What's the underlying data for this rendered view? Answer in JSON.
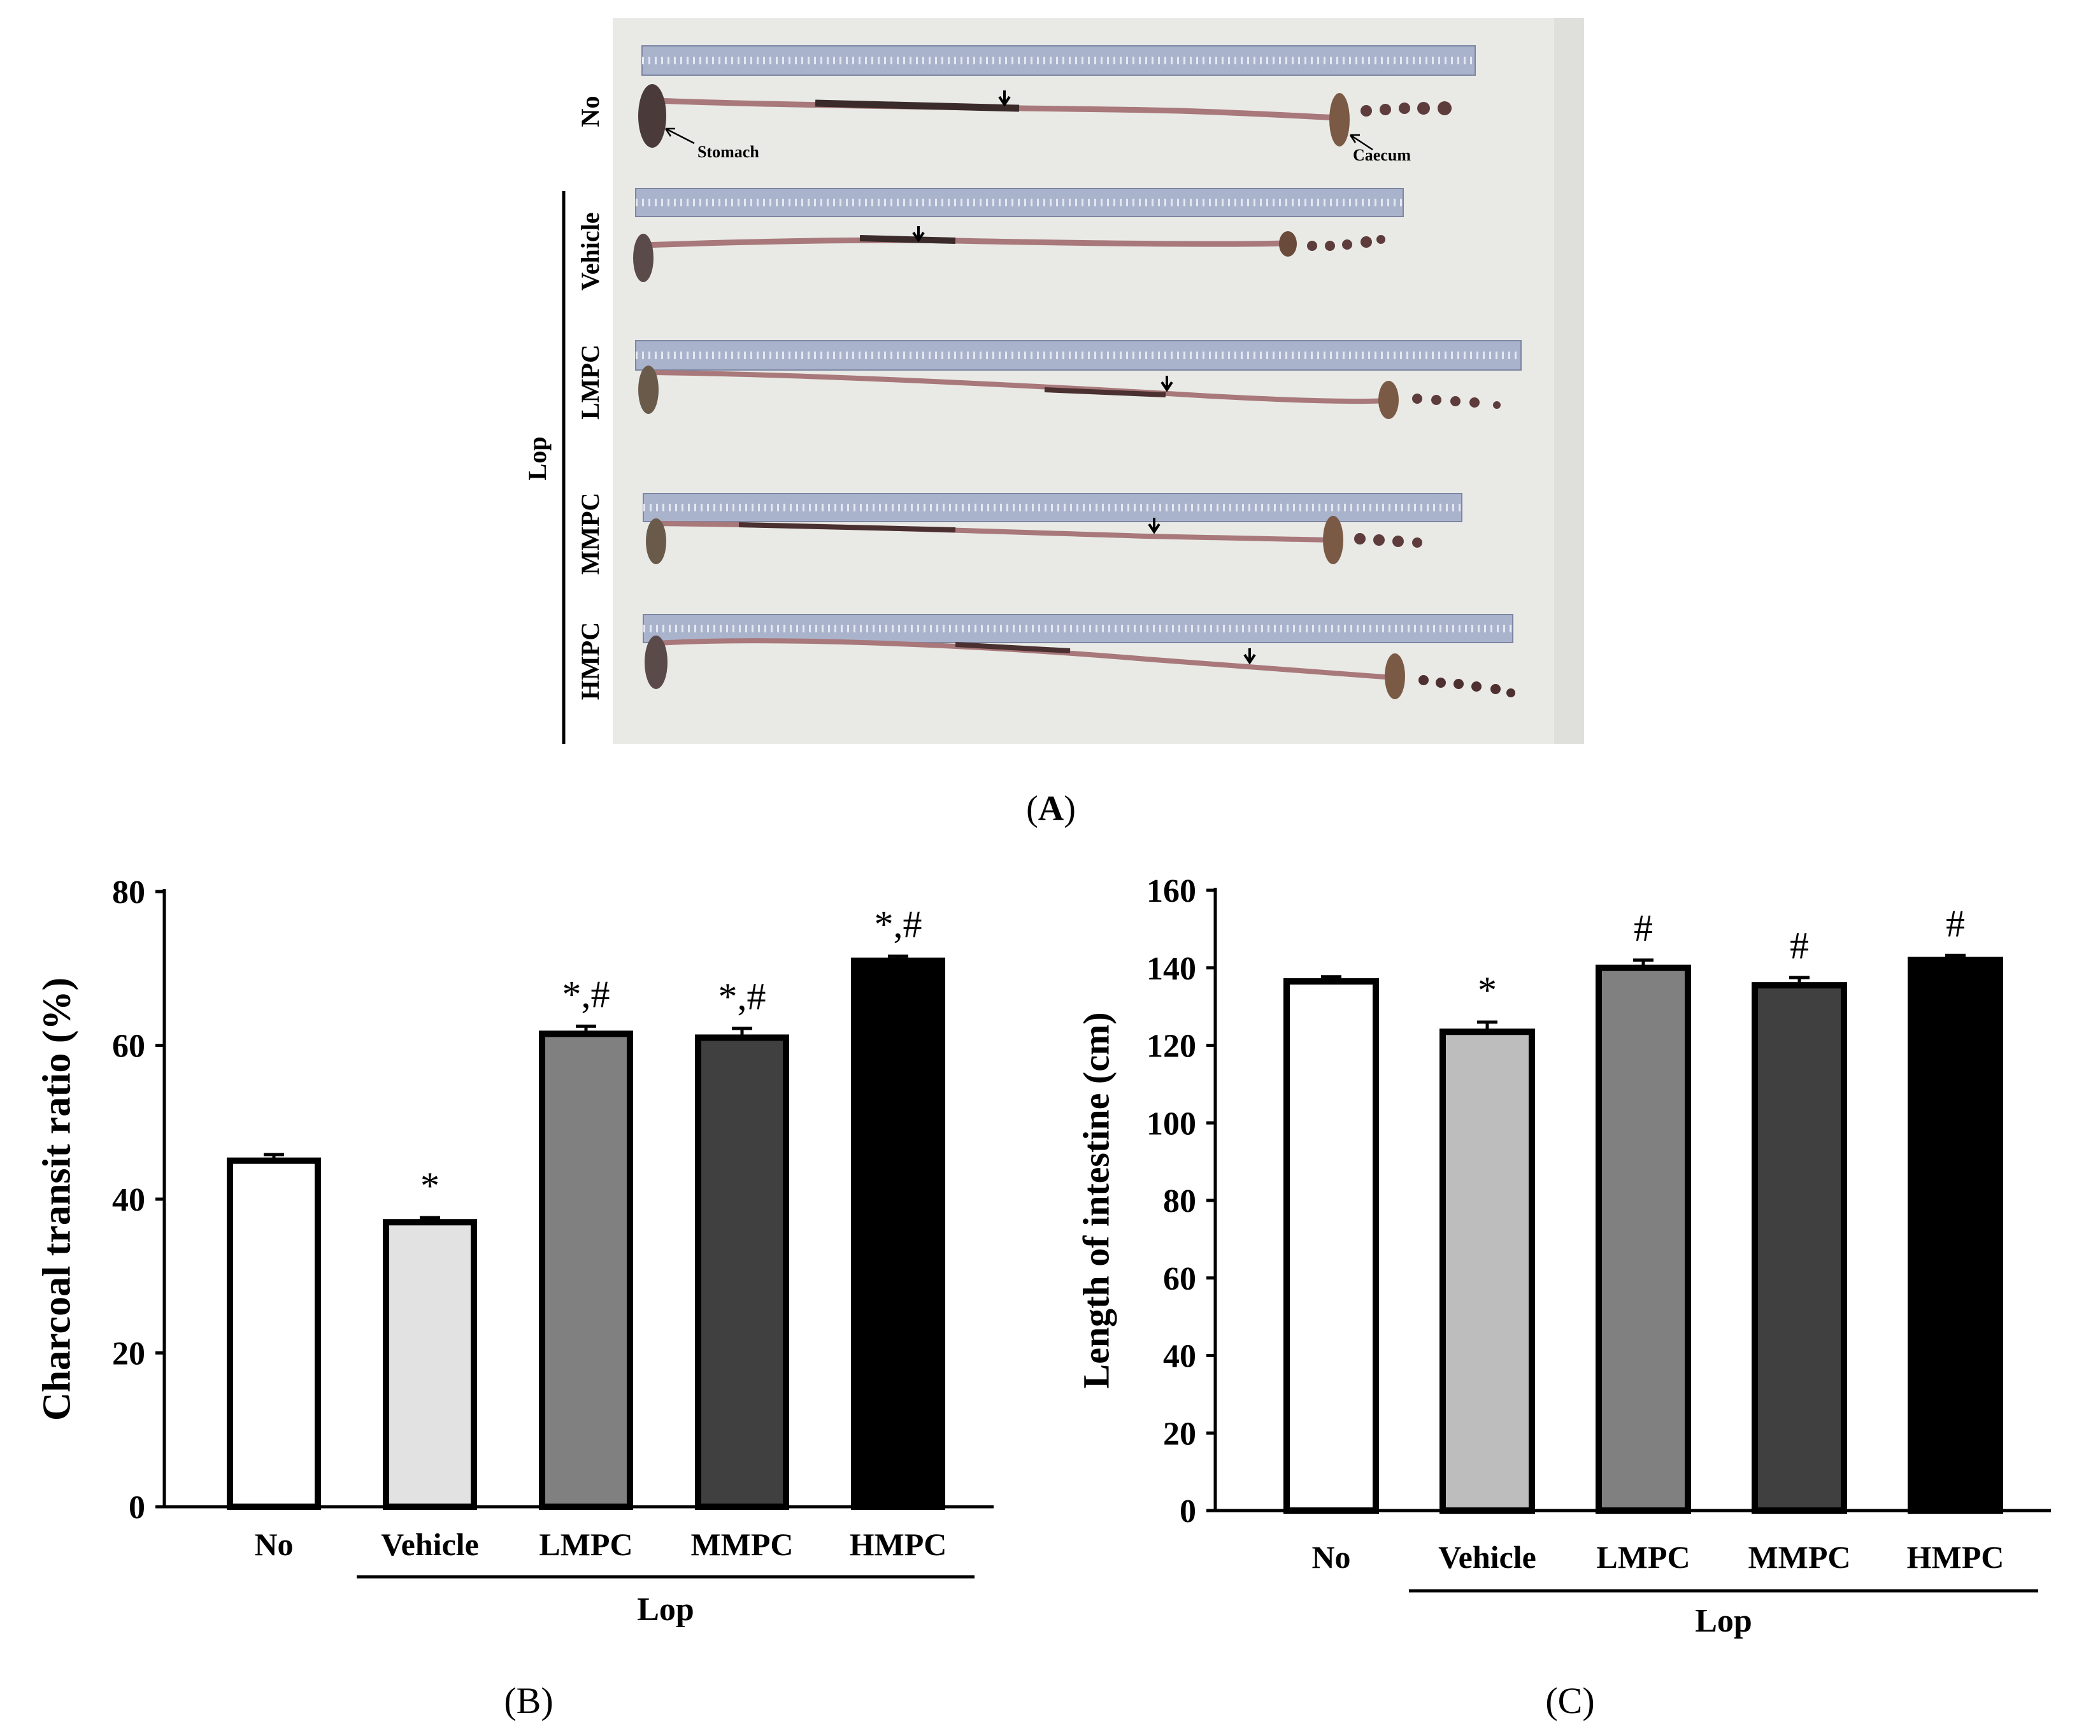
{
  "panel_a": {
    "label": "(A)",
    "label_letter": "A",
    "stomach_label": "Stomach",
    "caecum_label": "Caecum",
    "group_label": "Lop",
    "rows": [
      {
        "label": "No"
      },
      {
        "label": "Vehicle"
      },
      {
        "label": "LMPC"
      },
      {
        "label": "MMPC"
      },
      {
        "label": "HMPC"
      }
    ]
  },
  "colors": {
    "no": "#ffffff",
    "vehicle_b": "#e2e2e2",
    "vehicle_c": "#bdbdbd",
    "lmpc": "#808080",
    "mmpc": "#404040",
    "hmpc": "#000000",
    "photo_bg": "#e9eae6",
    "ruler": "#aab3cc",
    "intestine": "#a8787a"
  },
  "chart_data": [
    {
      "type": "bar",
      "panel_label": "(B)",
      "panel_letter": "B",
      "title": "",
      "xlabel": "",
      "ylabel": "Charcoal transit ratio (%)",
      "ylim": [
        0,
        80
      ],
      "yticks": [
        "0",
        "20",
        "40",
        "60",
        "80"
      ],
      "categories": [
        "No",
        "Vehicle",
        "LMPC",
        "MMPC",
        "HMPC"
      ],
      "values": [
        45,
        37,
        61.5,
        61,
        71
      ],
      "errors": [
        0.8,
        0.6,
        1.0,
        1.2,
        0.6
      ],
      "annotations": [
        "",
        "*",
        "*,#",
        "*,#",
        "*,#"
      ],
      "group_label": "Lop"
    },
    {
      "type": "bar",
      "panel_label": "(C)",
      "panel_letter": "C",
      "title": "",
      "xlabel": "",
      "ylabel": "Length of intestine (cm)",
      "ylim": [
        0,
        160
      ],
      "yticks": [
        "0",
        "20",
        "40",
        "60",
        "80",
        "100",
        "120",
        "140",
        "160"
      ],
      "categories": [
        "No",
        "Vehicle",
        "LMPC",
        "MMPC",
        "HMPC"
      ],
      "values": [
        136.5,
        123.5,
        140,
        135.5,
        142
      ],
      "errors": [
        1.2,
        2.5,
        2.0,
        2.0,
        1.2
      ],
      "annotations": [
        "",
        "*",
        "#",
        "#",
        "#"
      ],
      "group_label": "Lop"
    }
  ]
}
